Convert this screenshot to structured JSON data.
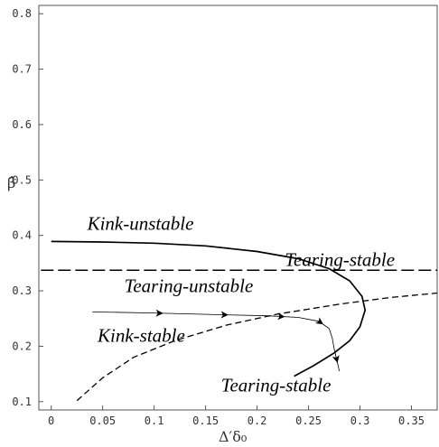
{
  "chart_data": {
    "type": "line",
    "xlabel": "Δ′δ₀",
    "ylabel": "β̂",
    "xlim": [
      -0.012,
      0.375
    ],
    "ylim": [
      0.085,
      0.815
    ],
    "x_ticks": [
      {
        "value": 0,
        "label": "0"
      },
      {
        "value": 0.05,
        "label": "0.05"
      },
      {
        "value": 0.1,
        "label": "0.1"
      },
      {
        "value": 0.15,
        "label": "0.15"
      },
      {
        "value": 0.2,
        "label": "0.2"
      },
      {
        "value": 0.25,
        "label": "0.25"
      },
      {
        "value": 0.3,
        "label": "0.3"
      },
      {
        "value": 0.35,
        "label": "0.35"
      }
    ],
    "y_ticks": [
      {
        "value": 0.1,
        "label": "0.1"
      },
      {
        "value": 0.2,
        "label": "0.2"
      },
      {
        "value": 0.3,
        "label": "0.3"
      },
      {
        "value": 0.4,
        "label": "0.4"
      },
      {
        "value": 0.5,
        "label": "0.5"
      },
      {
        "value": 0.6,
        "label": "0.6"
      },
      {
        "value": 0.7,
        "label": "0.7"
      },
      {
        "value": 0.8,
        "label": "0.8"
      }
    ],
    "grid": false,
    "series": [
      {
        "style": "solid",
        "points": [
          [
            0.0,
            0.389
          ],
          [
            0.05,
            0.388
          ],
          [
            0.1,
            0.386
          ],
          [
            0.15,
            0.381
          ],
          [
            0.2,
            0.371
          ],
          [
            0.24,
            0.358
          ],
          [
            0.27,
            0.34
          ],
          [
            0.29,
            0.318
          ],
          [
            0.302,
            0.29
          ],
          [
            0.305,
            0.265
          ],
          [
            0.3,
            0.235
          ],
          [
            0.29,
            0.21
          ],
          [
            0.275,
            0.188
          ],
          [
            0.255,
            0.165
          ],
          [
            0.236,
            0.146
          ]
        ]
      },
      {
        "style": "long-dash",
        "points": [
          [
            -0.01,
            0.337
          ],
          [
            0.375,
            0.337
          ]
        ]
      },
      {
        "style": "dash",
        "points": [
          [
            0.025,
            0.102
          ],
          [
            0.05,
            0.143
          ],
          [
            0.08,
            0.18
          ],
          [
            0.12,
            0.21
          ],
          [
            0.17,
            0.238
          ],
          [
            0.22,
            0.258
          ],
          [
            0.28,
            0.276
          ],
          [
            0.33,
            0.288
          ],
          [
            0.375,
            0.296
          ]
        ]
      },
      {
        "style": "thin-arrowed",
        "points": [
          [
            0.04,
            0.262
          ],
          [
            0.1,
            0.26
          ],
          [
            0.16,
            0.257
          ],
          [
            0.21,
            0.255
          ],
          [
            0.24,
            0.252
          ],
          [
            0.26,
            0.245
          ],
          [
            0.27,
            0.232
          ],
          [
            0.273,
            0.215
          ],
          [
            0.275,
            0.195
          ],
          [
            0.28,
            0.155
          ]
        ]
      }
    ],
    "annotations": [
      {
        "text": "Kink-unstable",
        "x": 0.035,
        "y": 0.41
      },
      {
        "text": "Tearing-stable",
        "x": 0.227,
        "y": 0.345
      },
      {
        "text": "Tearing-unstable",
        "x": 0.071,
        "y": 0.298
      },
      {
        "text": "Kink-stable",
        "x": 0.045,
        "y": 0.208
      },
      {
        "text": "Tearing-stable",
        "x": 0.165,
        "y": 0.118
      }
    ]
  }
}
